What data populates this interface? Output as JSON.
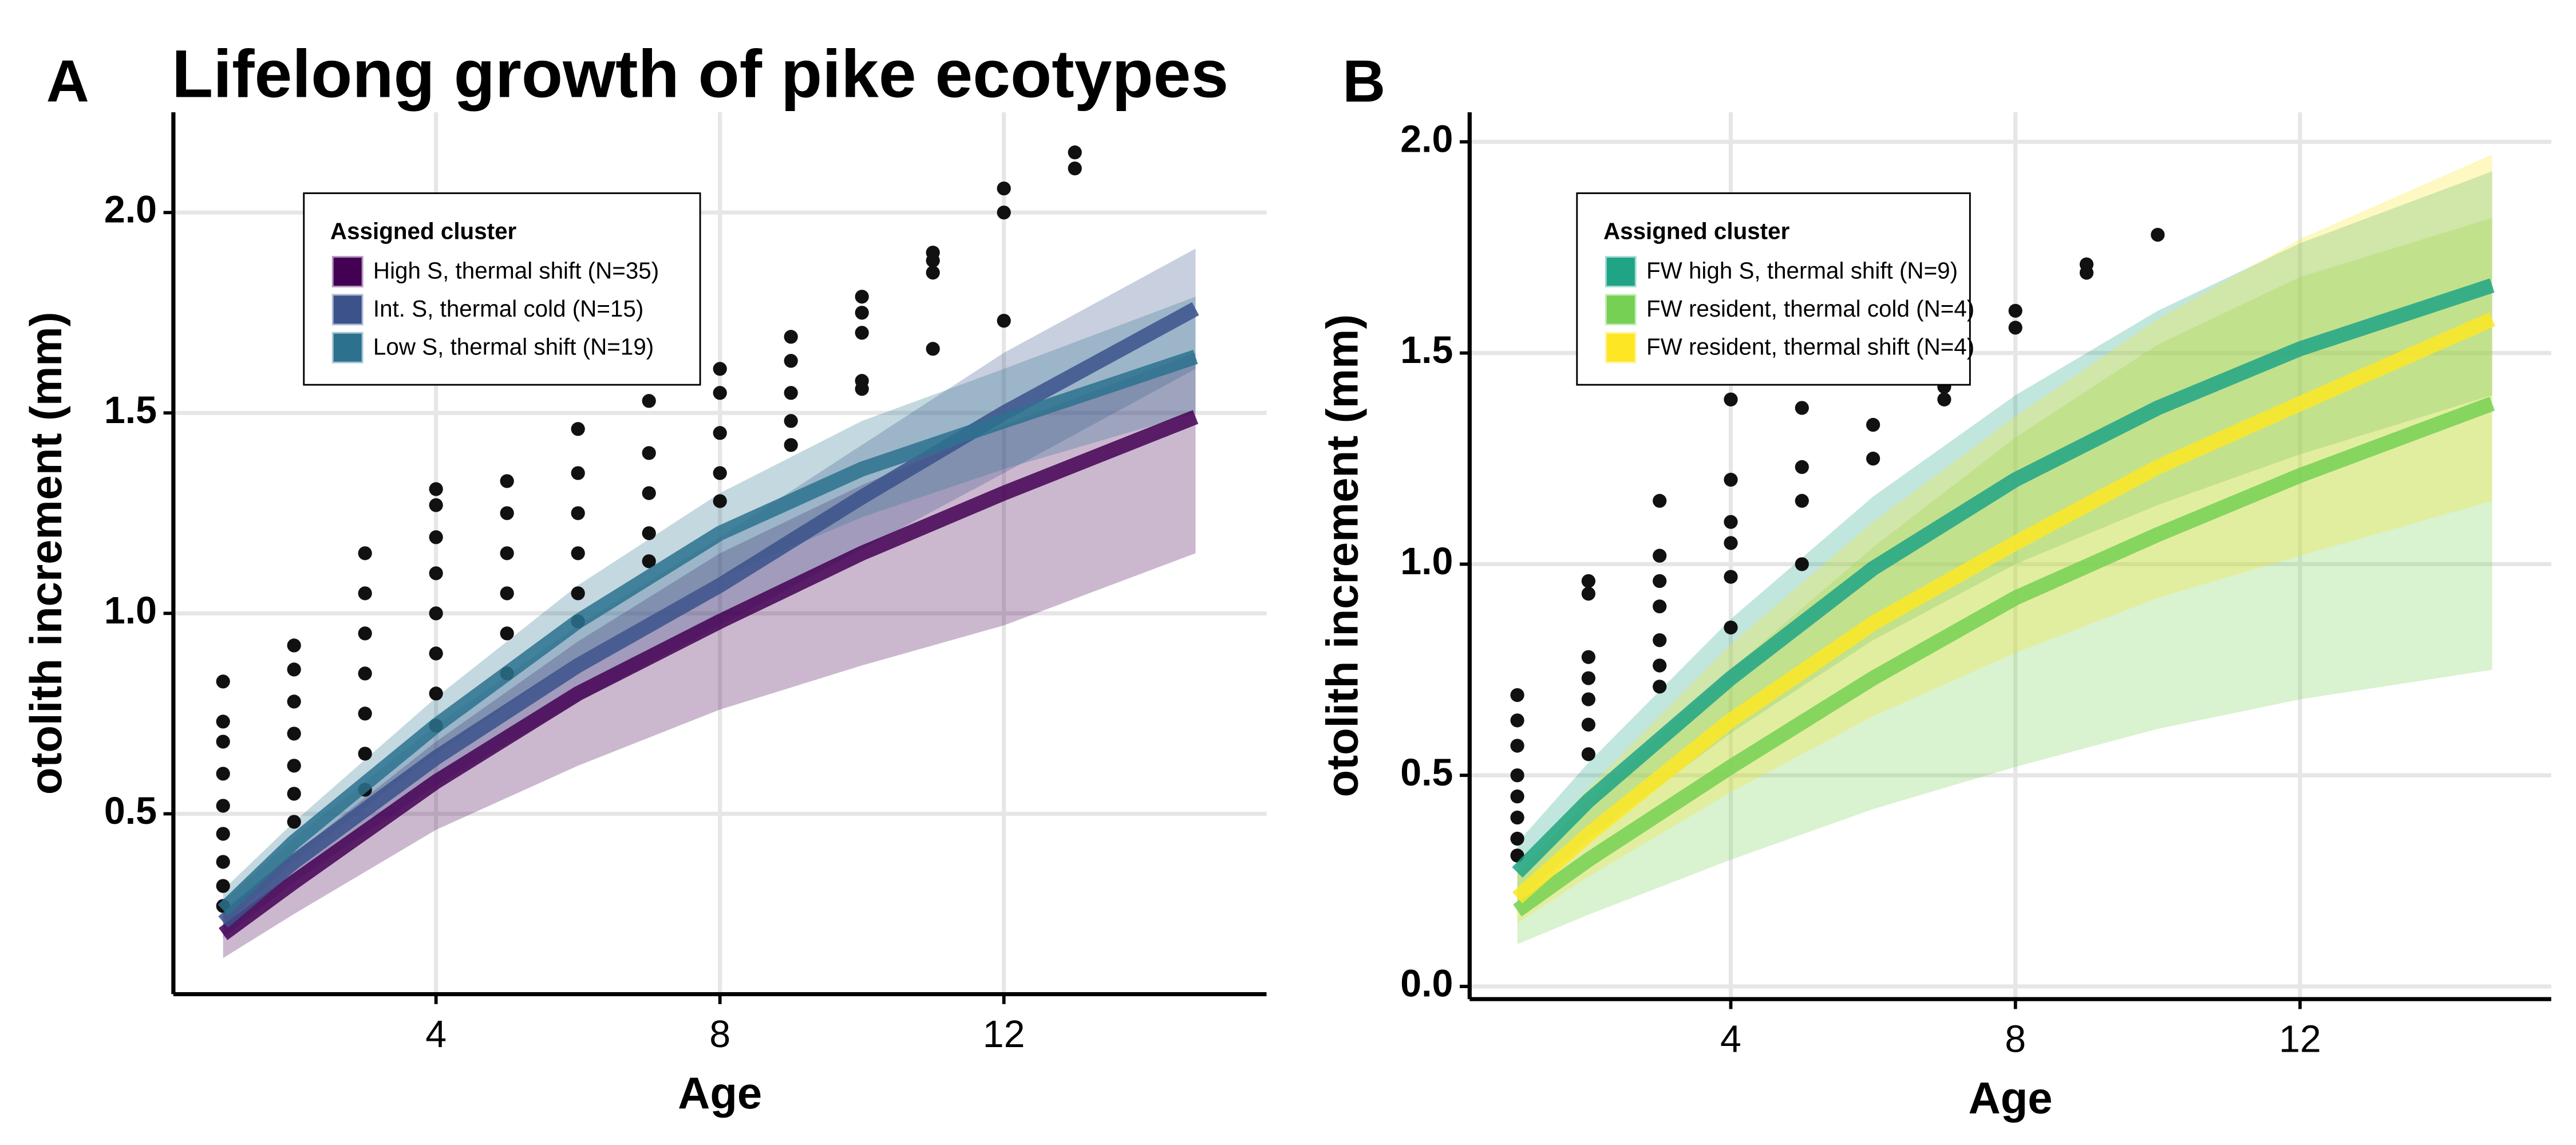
{
  "chart_data": [
    {
      "type": "line",
      "panel_label": "A",
      "title": "Lifelong growth of pike ecotypes",
      "x_label": "Age",
      "y_label": "otolith increment (mm)",
      "legend_title": "Assigned cluster",
      "xlim": [
        0.3,
        15.7
      ],
      "ylim": [
        0.05,
        2.25
      ],
      "xticks": [
        4,
        8,
        12
      ],
      "yticks": [
        {
          "value": 0.5,
          "label": "0.5"
        },
        {
          "value": 1,
          "label": "1.0"
        },
        {
          "value": 1.5,
          "label": "1.5"
        },
        {
          "value": 2,
          "label": "2.0"
        }
      ],
      "grid": true,
      "x": [
        1,
        2,
        4,
        6,
        8,
        10,
        12,
        14.7
      ],
      "series": [
        {
          "name": "High S, thermal shift (N=35)",
          "color": "#440154",
          "values": [
            0.2,
            0.33,
            0.58,
            0.8,
            0.98,
            1.15,
            1.3,
            1.49
          ],
          "lower": [
            0.14,
            0.25,
            0.46,
            0.62,
            0.76,
            0.87,
            0.97,
            1.15
          ],
          "upper": [
            0.26,
            0.4,
            0.68,
            0.93,
            1.15,
            1.32,
            1.47,
            1.65
          ]
        },
        {
          "name": "Int. S, thermal cold (N=15)",
          "color": "#3b528b",
          "values": [
            0.23,
            0.38,
            0.64,
            0.87,
            1.07,
            1.29,
            1.5,
            1.76
          ],
          "lower": [
            0.19,
            0.33,
            0.57,
            0.78,
            0.97,
            1.16,
            1.35,
            1.61
          ],
          "upper": [
            0.28,
            0.44,
            0.72,
            0.97,
            1.19,
            1.42,
            1.65,
            1.91
          ]
        },
        {
          "name": "Low S, thermal shift (N=19)",
          "color": "#2c728e",
          "values": [
            0.26,
            0.43,
            0.72,
            0.98,
            1.2,
            1.36,
            1.48,
            1.64
          ],
          "lower": [
            0.22,
            0.38,
            0.65,
            0.89,
            1.09,
            1.24,
            1.36,
            1.5
          ],
          "upper": [
            0.31,
            0.48,
            0.79,
            1.07,
            1.3,
            1.48,
            1.61,
            1.79
          ]
        }
      ],
      "points": {
        "x": [
          1,
          1,
          1,
          1,
          1,
          1,
          1,
          1,
          1,
          2,
          2,
          2,
          2,
          2,
          2,
          2,
          3,
          3,
          3,
          3,
          3,
          3,
          3,
          4,
          4,
          4,
          4,
          4,
          4,
          4,
          4,
          5,
          5,
          5,
          5,
          5,
          5,
          6,
          6,
          6,
          6,
          6,
          6,
          7,
          7,
          7,
          7,
          7,
          8,
          8,
          8,
          8,
          8,
          9,
          9,
          9,
          9,
          9,
          10,
          10,
          10,
          10,
          10,
          11,
          11,
          11,
          11,
          12,
          12,
          12,
          13,
          13
        ],
        "y": [
          0.27,
          0.32,
          0.38,
          0.45,
          0.52,
          0.6,
          0.68,
          0.73,
          0.83,
          0.48,
          0.55,
          0.62,
          0.7,
          0.78,
          0.86,
          0.92,
          0.56,
          0.65,
          0.75,
          0.85,
          0.95,
          1.05,
          1.15,
          0.72,
          0.8,
          0.9,
          1.0,
          1.1,
          1.19,
          1.27,
          1.31,
          0.85,
          0.95,
          1.05,
          1.15,
          1.25,
          1.33,
          0.98,
          1.05,
          1.15,
          1.25,
          1.35,
          1.46,
          1.13,
          1.2,
          1.3,
          1.4,
          1.53,
          1.28,
          1.35,
          1.45,
          1.55,
          1.61,
          1.42,
          1.48,
          1.55,
          1.63,
          1.69,
          1.56,
          1.58,
          1.7,
          1.75,
          1.79,
          1.66,
          1.85,
          1.88,
          1.9,
          1.73,
          2.0,
          2.06,
          2.11,
          2.15
        ]
      }
    },
    {
      "type": "line",
      "panel_label": "B",
      "x_label": "Age",
      "y_label": "otolith increment (mm)",
      "legend_title": "Assigned cluster",
      "xlim": [
        0.33,
        15.53
      ],
      "ylim": [
        -0.03,
        2.07
      ],
      "xticks": [
        4,
        8,
        12
      ],
      "yticks": [
        {
          "value": 0,
          "label": "0.0"
        },
        {
          "value": 0.5,
          "label": "0.5"
        },
        {
          "value": 1,
          "label": "1.0"
        },
        {
          "value": 1.5,
          "label": "1.5"
        },
        {
          "value": 2,
          "label": "2.0"
        }
      ],
      "grid": true,
      "x": [
        1,
        2,
        4,
        6,
        8,
        10,
        12,
        14.7
      ],
      "series": [
        {
          "name": "FW high S, thermal shift (N=9)",
          "color": "#20a486",
          "values": [
            0.27,
            0.44,
            0.73,
            0.99,
            1.2,
            1.37,
            1.51,
            1.66
          ],
          "lower": [
            0.2,
            0.35,
            0.6,
            0.82,
            1.0,
            1.14,
            1.26,
            1.4
          ],
          "upper": [
            0.34,
            0.53,
            0.87,
            1.16,
            1.4,
            1.6,
            1.76,
            1.93
          ]
        },
        {
          "name": "FW resident, thermal cold (N=4)",
          "color": "#75d054",
          "values": [
            0.18,
            0.3,
            0.52,
            0.73,
            0.92,
            1.07,
            1.21,
            1.38
          ],
          "lower": [
            0.1,
            0.17,
            0.3,
            0.42,
            0.52,
            0.61,
            0.68,
            0.75
          ],
          "upper": [
            0.27,
            0.44,
            0.75,
            1.04,
            1.3,
            1.52,
            1.68,
            1.82
          ]
        },
        {
          "name": "FW resident, thermal shift (N=4)",
          "color": "#fde725",
          "values": [
            0.21,
            0.36,
            0.63,
            0.86,
            1.05,
            1.23,
            1.38,
            1.58
          ],
          "lower": [
            0.15,
            0.26,
            0.46,
            0.64,
            0.79,
            0.92,
            1.02,
            1.15
          ],
          "upper": [
            0.28,
            0.47,
            0.81,
            1.1,
            1.35,
            1.58,
            1.77,
            1.97
          ]
        }
      ],
      "points": {
        "x": [
          1,
          1,
          1,
          1,
          1,
          1,
          1,
          1,
          2,
          2,
          2,
          2,
          2,
          2,
          2,
          3,
          3,
          3,
          3,
          3,
          3,
          3,
          4,
          4,
          4,
          4,
          4,
          4,
          5,
          5,
          5,
          5,
          6,
          6,
          7,
          7,
          8,
          8,
          9,
          9,
          10
        ],
        "y": [
          0.31,
          0.35,
          0.4,
          0.45,
          0.5,
          0.57,
          0.63,
          0.69,
          0.55,
          0.62,
          0.68,
          0.73,
          0.78,
          0.93,
          0.96,
          0.71,
          0.76,
          0.82,
          0.9,
          0.96,
          1.02,
          1.15,
          0.85,
          0.97,
          1.05,
          1.1,
          1.2,
          1.39,
          1.0,
          1.15,
          1.23,
          1.37,
          1.25,
          1.33,
          1.39,
          1.42,
          1.56,
          1.6,
          1.69,
          1.71,
          1.78
        ]
      }
    }
  ]
}
